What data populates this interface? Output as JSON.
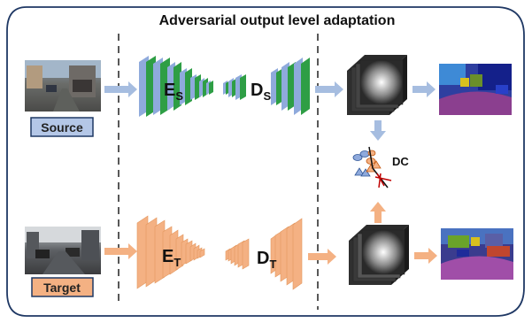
{
  "title": "Adversarial output level adaptation",
  "source": {
    "label": "Source",
    "encoder": {
      "main": "E",
      "sub": "S"
    },
    "decoder": {
      "main": "D",
      "sub": "S"
    }
  },
  "target": {
    "label": "Target",
    "encoder": {
      "main": "E",
      "sub": "T"
    },
    "decoder": {
      "main": "D",
      "sub": "T"
    }
  },
  "discriminator": {
    "label": "DC"
  },
  "colors": {
    "source_label_bg": "#b4c7e7",
    "target_label_bg": "#f4b183",
    "source_net_green": "#2e9e45",
    "source_net_blue": "#8faadc",
    "target_net": "#f4b183",
    "arrow_blue": "#a6bde0",
    "arrow_orange": "#f4b183"
  }
}
